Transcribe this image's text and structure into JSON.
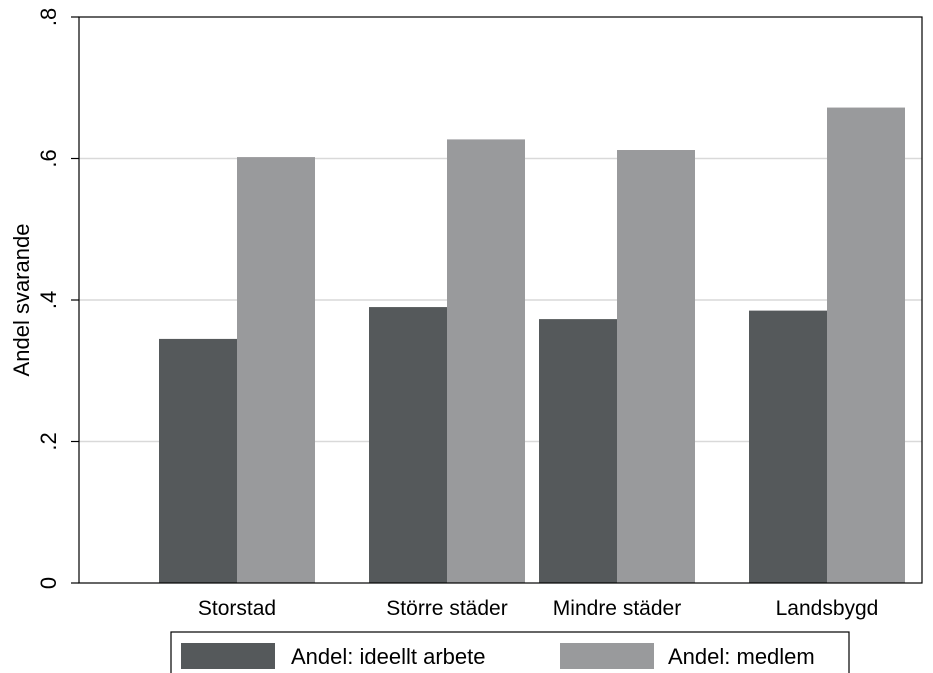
{
  "chart_data": {
    "type": "bar",
    "categories": [
      "Storstad",
      "Större städer",
      "Mindre städer",
      "Landsbygd"
    ],
    "series": [
      {
        "name": "Andel: ideellt arbete",
        "values": [
          0.345,
          0.39,
          0.373,
          0.385
        ],
        "color": "#55595b"
      },
      {
        "name": "Andel: medlem",
        "values": [
          0.602,
          0.627,
          0.612,
          0.672
        ],
        "color": "#999a9c"
      }
    ],
    "ylabel": "Andel svarande",
    "xlabel": "",
    "ylim": [
      0,
      0.8
    ],
    "yticks": [
      {
        "value": 0,
        "label": "0"
      },
      {
        "value": 0.2,
        "label": ".2"
      },
      {
        "value": 0.4,
        "label": ".4"
      },
      {
        "value": 0.6,
        "label": ".6"
      },
      {
        "value": 0.8,
        "label": ".8"
      }
    ],
    "grid": true,
    "legend": "bottom",
    "gridColor": "#d9d9d9"
  }
}
